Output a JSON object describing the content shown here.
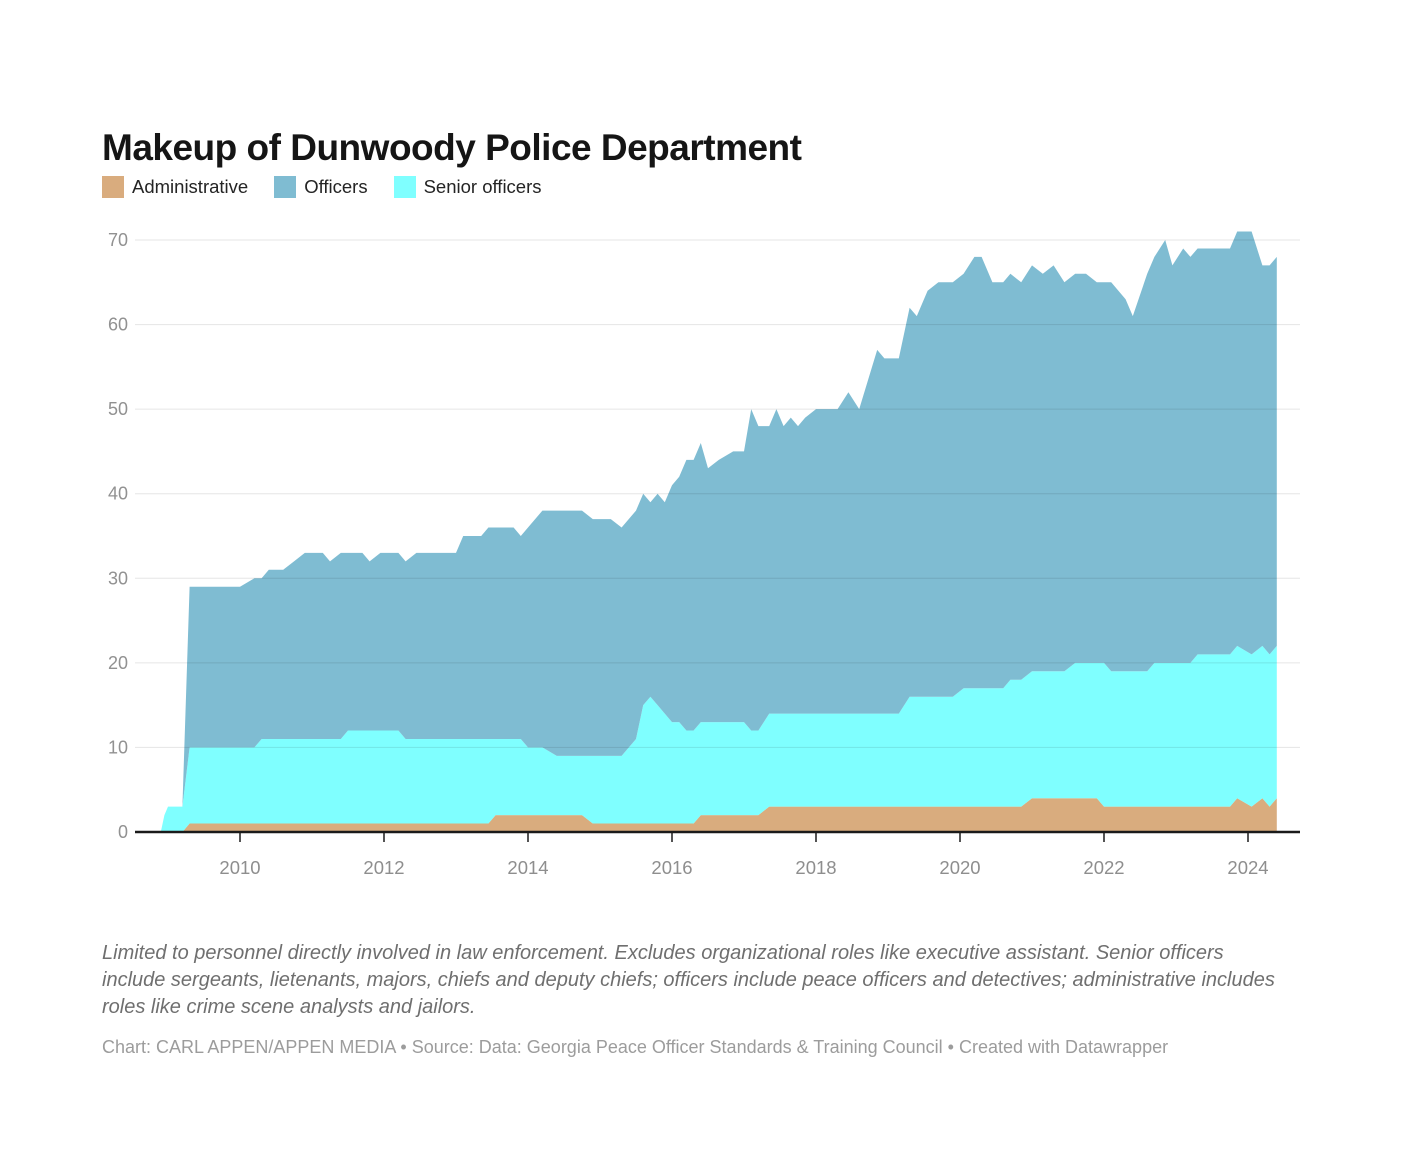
{
  "title": "Makeup of Dunwoody Police Department",
  "legend": {
    "items": [
      {
        "label": "Administrative",
        "color": "#D9AC7E"
      },
      {
        "label": "Officers",
        "color": "#7FBCD2"
      },
      {
        "label": "Senior officers",
        "color": "#7FFFFF"
      }
    ]
  },
  "notes": "Limited to personnel directly involved in law enforcement. Excludes organizational roles like executive assistant. Senior officers include sergeants, lietenants, majors, chiefs and deputy chiefs; officers include peace officers and detectives; administrative includes roles like crime scene analysts and jailors.",
  "credit": "Chart: CARL APPEN/APPEN MEDIA • Source: Data: Georgia Peace Officer Standards & Training Council • Created with Datawrapper",
  "chart_data": {
    "type": "area",
    "stacked": true,
    "title": "Makeup of Dunwoody Police Department",
    "xlabel": "",
    "ylabel": "",
    "x_unit": "decimal year",
    "grid": true,
    "legend_position": "top",
    "stack_order_bottom_to_top": [
      "Administrative",
      "Senior officers",
      "Officers"
    ],
    "colors": {
      "Administrative": "#D9AC7E",
      "Senior officers": "#7FFFFF",
      "Officers": "#7FBCD2"
    },
    "y_axis": {
      "min": 0,
      "max": 71,
      "ticks": [
        0,
        10,
        20,
        30,
        40,
        50,
        60,
        70
      ]
    },
    "x_axis": {
      "min": 2008.9,
      "max": 2024.45,
      "ticks": [
        2010,
        2012,
        2014,
        2016,
        2018,
        2020,
        2022,
        2024
      ]
    },
    "columns": [
      "year",
      "Administrative",
      "Senior officers",
      "Officers"
    ],
    "points": [
      [
        2008.9,
        0,
        0,
        0
      ],
      [
        2008.95,
        0,
        2,
        0
      ],
      [
        2009.0,
        0,
        3,
        0
      ],
      [
        2009.2,
        0,
        3,
        0
      ],
      [
        2009.3,
        1,
        9,
        19
      ],
      [
        2010.0,
        1,
        9,
        19
      ],
      [
        2010.2,
        1,
        9,
        20
      ],
      [
        2010.3,
        1,
        10,
        19
      ],
      [
        2010.4,
        1,
        10,
        20
      ],
      [
        2010.6,
        1,
        10,
        20
      ],
      [
        2010.75,
        1,
        10,
        21
      ],
      [
        2010.9,
        1,
        10,
        22
      ],
      [
        2011.15,
        1,
        10,
        22
      ],
      [
        2011.25,
        1,
        10,
        21
      ],
      [
        2011.4,
        1,
        10,
        22
      ],
      [
        2011.5,
        1,
        11,
        21
      ],
      [
        2011.7,
        1,
        11,
        21
      ],
      [
        2011.8,
        1,
        11,
        20
      ],
      [
        2011.95,
        1,
        11,
        21
      ],
      [
        2012.2,
        1,
        11,
        21
      ],
      [
        2012.3,
        1,
        10,
        21
      ],
      [
        2012.45,
        1,
        10,
        22
      ],
      [
        2013.0,
        1,
        10,
        22
      ],
      [
        2013.1,
        1,
        10,
        24
      ],
      [
        2013.35,
        1,
        10,
        24
      ],
      [
        2013.45,
        1,
        10,
        25
      ],
      [
        2013.55,
        2,
        9,
        25
      ],
      [
        2013.8,
        2,
        9,
        25
      ],
      [
        2013.9,
        2,
        9,
        24
      ],
      [
        2014.0,
        2,
        8,
        26
      ],
      [
        2014.2,
        2,
        8,
        28
      ],
      [
        2014.4,
        2,
        7,
        29
      ],
      [
        2014.75,
        2,
        7,
        29
      ],
      [
        2014.9,
        1,
        8,
        28
      ],
      [
        2015.15,
        1,
        8,
        28
      ],
      [
        2015.3,
        1,
        8,
        27
      ],
      [
        2015.5,
        1,
        10,
        27
      ],
      [
        2015.6,
        1,
        14,
        25
      ],
      [
        2015.7,
        1,
        15,
        23
      ],
      [
        2015.8,
        1,
        14,
        25
      ],
      [
        2015.9,
        1,
        13,
        25
      ],
      [
        2016.0,
        1,
        12,
        28
      ],
      [
        2016.1,
        1,
        12,
        29
      ],
      [
        2016.2,
        1,
        11,
        32
      ],
      [
        2016.3,
        1,
        11,
        32
      ],
      [
        2016.4,
        2,
        11,
        33
      ],
      [
        2016.5,
        2,
        11,
        30
      ],
      [
        2016.65,
        2,
        11,
        31
      ],
      [
        2016.85,
        2,
        11,
        32
      ],
      [
        2017.0,
        2,
        11,
        32
      ],
      [
        2017.1,
        2,
        10,
        38
      ],
      [
        2017.2,
        2,
        10,
        36
      ],
      [
        2017.35,
        3,
        11,
        34
      ],
      [
        2017.45,
        3,
        11,
        36
      ],
      [
        2017.55,
        3,
        11,
        34
      ],
      [
        2017.65,
        3,
        11,
        35
      ],
      [
        2017.75,
        3,
        11,
        34
      ],
      [
        2017.85,
        3,
        11,
        35
      ],
      [
        2018.0,
        3,
        11,
        36
      ],
      [
        2018.3,
        3,
        11,
        36
      ],
      [
        2018.45,
        3,
        11,
        38
      ],
      [
        2018.6,
        3,
        11,
        36
      ],
      [
        2018.85,
        3,
        11,
        43
      ],
      [
        2018.95,
        3,
        11,
        42
      ],
      [
        2019.15,
        3,
        11,
        42
      ],
      [
        2019.3,
        3,
        13,
        46
      ],
      [
        2019.4,
        3,
        13,
        45
      ],
      [
        2019.55,
        3,
        13,
        48
      ],
      [
        2019.7,
        3,
        13,
        49
      ],
      [
        2019.9,
        3,
        13,
        49
      ],
      [
        2020.05,
        3,
        14,
        49
      ],
      [
        2020.2,
        3,
        14,
        51
      ],
      [
        2020.3,
        3,
        14,
        51
      ],
      [
        2020.45,
        3,
        14,
        48
      ],
      [
        2020.6,
        3,
        14,
        48
      ],
      [
        2020.7,
        3,
        15,
        48
      ],
      [
        2020.85,
        3,
        15,
        47
      ],
      [
        2021.0,
        4,
        15,
        48
      ],
      [
        2021.15,
        4,
        15,
        47
      ],
      [
        2021.3,
        4,
        15,
        48
      ],
      [
        2021.45,
        4,
        15,
        46
      ],
      [
        2021.6,
        4,
        16,
        46
      ],
      [
        2021.75,
        4,
        16,
        46
      ],
      [
        2021.9,
        4,
        16,
        45
      ],
      [
        2022.0,
        3,
        17,
        45
      ],
      [
        2022.1,
        3,
        16,
        46
      ],
      [
        2022.3,
        3,
        16,
        44
      ],
      [
        2022.4,
        3,
        16,
        42
      ],
      [
        2022.6,
        3,
        16,
        47
      ],
      [
        2022.7,
        3,
        17,
        48
      ],
      [
        2022.85,
        3,
        17,
        50
      ],
      [
        2022.95,
        3,
        17,
        47
      ],
      [
        2023.1,
        3,
        17,
        49
      ],
      [
        2023.2,
        3,
        17,
        48
      ],
      [
        2023.3,
        3,
        18,
        48
      ],
      [
        2023.75,
        3,
        18,
        48
      ],
      [
        2023.85,
        4,
        18,
        49
      ],
      [
        2024.05,
        3,
        18,
        50
      ],
      [
        2024.2,
        4,
        18,
        45
      ],
      [
        2024.3,
        3,
        18,
        46
      ],
      [
        2024.4,
        4,
        18,
        46
      ]
    ]
  }
}
